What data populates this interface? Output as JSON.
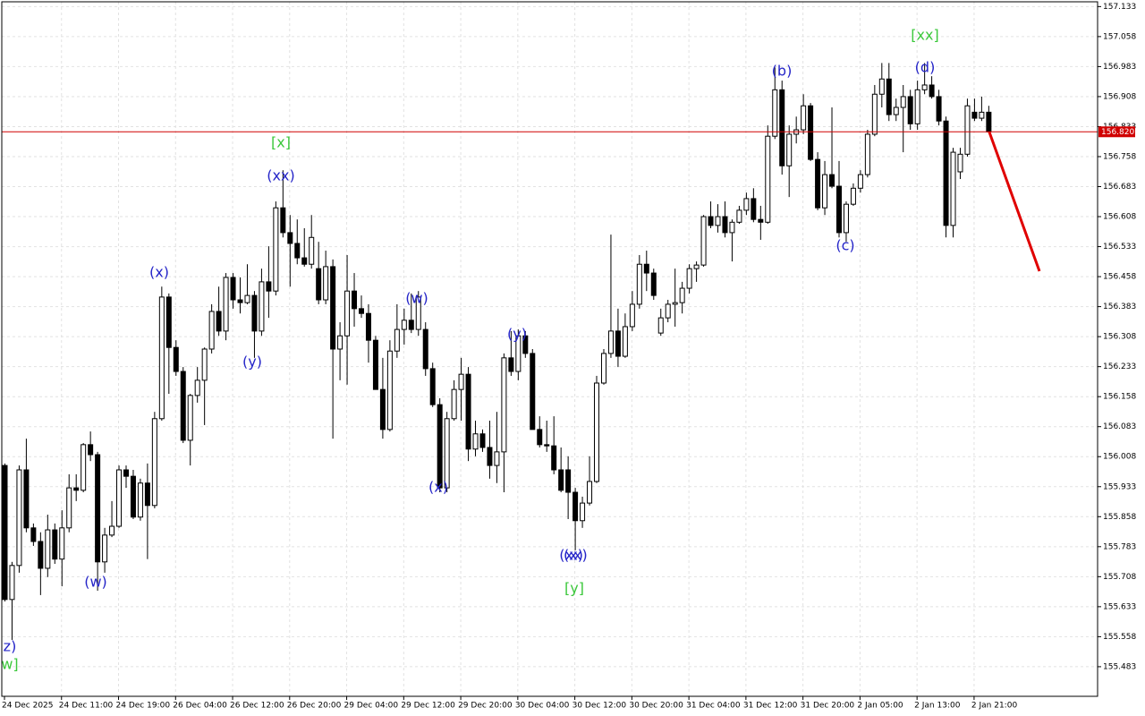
{
  "chart_data": {
    "type": "candlestick",
    "categories": [
      "24 Dec 2025",
      null,
      null,
      null,
      null,
      null,
      null,
      null,
      "24 Dec 11:00",
      null,
      null,
      null,
      null,
      null,
      null,
      null,
      "24 Dec 19:00",
      null,
      null,
      null,
      null,
      null,
      null,
      null,
      "26 Dec 04:00",
      null,
      null,
      null,
      null,
      null,
      null,
      null,
      "26 Dec 12:00",
      null,
      null,
      null,
      null,
      null,
      null,
      null,
      "26 Dec 20:00",
      null,
      null,
      null,
      null,
      null,
      null,
      null,
      "29 Dec 04:00",
      null,
      null,
      null,
      null,
      null,
      null,
      null,
      "29 Dec 12:00",
      null,
      null,
      null,
      null,
      null,
      null,
      null,
      "29 Dec 20:00",
      null,
      null,
      null,
      null,
      null,
      null,
      null,
      "30 Dec 04:00",
      null,
      null,
      null,
      null,
      null,
      null,
      null,
      "30 Dec 12:00",
      null,
      null,
      null,
      null,
      null,
      null,
      null,
      "30 Dec 20:00",
      null,
      null,
      null,
      null,
      null,
      null,
      null,
      "31 Dec 04:00",
      null,
      null,
      null,
      null,
      null,
      null,
      null,
      "31 Dec 12:00",
      null,
      null,
      null,
      null,
      null,
      null,
      null,
      "31 Dec 20:00",
      null,
      null,
      null,
      null,
      null,
      null,
      null,
      "2 Jan 05:00",
      null,
      null,
      null,
      null,
      null,
      null,
      null,
      "2 Jan 13:00",
      null,
      null,
      null,
      null,
      null,
      null,
      null,
      "2 Jan 21:00",
      null,
      null
    ],
    "open": [
      155.986,
      155.651,
      155.736,
      155.975,
      155.83,
      155.796,
      155.729,
      155.825,
      155.752,
      155.83,
      155.93,
      155.924,
      156.038,
      156.013,
      155.745,
      155.812,
      155.834,
      155.975,
      155.959,
      155.857,
      155.942,
      155.886,
      156.103,
      156.407,
      156.281,
      156.221,
      156.049,
      156.161,
      156.199,
      156.277,
      156.371,
      156.322,
      156.456,
      156.4,
      156.393,
      156.411,
      156.322,
      156.445,
      156.422,
      156.63,
      156.568,
      156.541,
      156.505,
      156.489,
      156.478,
      156.4,
      156.483,
      156.277,
      156.31,
      156.422,
      156.378,
      156.366,
      156.299,
      156.176,
      156.076,
      156.272,
      156.326,
      156.349,
      156.326,
      156.326,
      156.228,
      156.138,
      155.93,
      156.103,
      156.176,
      156.214,
      156.027,
      156.065,
      156.031,
      155.986,
      156.02,
      156.255,
      156.221,
      156.31,
      156.266,
      156.076,
      156.038,
      156.035,
      155.975,
      155.975,
      155.919,
      155.848,
      155.892,
      155.946,
      156.192,
      156.266,
      156.322,
      156.259,
      156.333,
      156.389,
      156.489,
      156.467,
      156.317,
      156.355,
      156.389,
      156.393,
      156.429,
      156.478,
      156.487,
      156.608,
      156.586,
      156.608,
      156.568,
      156.594,
      156.624,
      156.653,
      156.601,
      156.594,
      156.809,
      156.925,
      156.735,
      156.814,
      156.825,
      156.885,
      156.751,
      156.63,
      156.713,
      156.684,
      156.568,
      156.639,
      156.679,
      156.713,
      156.814,
      156.914,
      156.952,
      156.863,
      156.881,
      156.908,
      156.84,
      156.925,
      156.937,
      156.908,
      156.847,
      156.586,
      156.72,
      156.764,
      156.869,
      156.854,
      156.869
    ],
    "high": [
      155.991,
      155.745,
      155.986,
      156.053,
      155.841,
      155.819,
      155.863,
      155.841,
      155.874,
      155.964,
      155.964,
      156.042,
      156.071,
      156.02,
      155.83,
      155.897,
      155.986,
      155.986,
      155.975,
      155.953,
      155.991,
      156.12,
      156.433,
      156.416,
      156.299,
      156.232,
      156.165,
      156.232,
      156.281,
      156.389,
      156.433,
      156.467,
      156.467,
      156.456,
      156.489,
      156.422,
      156.478,
      156.534,
      156.646,
      156.724,
      156.612,
      156.601,
      156.579,
      156.612,
      156.545,
      156.523,
      156.501,
      156.344,
      156.512,
      156.467,
      156.411,
      156.389,
      156.31,
      156.255,
      156.299,
      156.389,
      156.378,
      156.416,
      156.422,
      156.344,
      156.243,
      156.154,
      156.12,
      156.199,
      156.255,
      156.232,
      156.098,
      156.076,
      156.098,
      156.12,
      156.266,
      156.322,
      156.326,
      156.322,
      156.277,
      156.109,
      156.098,
      156.109,
      156.031,
      156.009,
      155.93,
      155.908,
      156.009,
      156.21,
      156.277,
      156.563,
      156.378,
      156.366,
      156.422,
      156.512,
      156.523,
      156.478,
      156.378,
      156.4,
      156.478,
      156.445,
      156.489,
      156.496,
      156.612,
      156.646,
      156.639,
      156.646,
      156.601,
      156.635,
      156.668,
      156.679,
      156.635,
      156.836,
      156.981,
      156.948,
      156.836,
      156.858,
      156.914,
      156.892,
      156.769,
      156.747,
      156.881,
      156.747,
      156.646,
      156.691,
      156.724,
      156.825,
      156.937,
      156.992,
      156.992,
      156.903,
      156.937,
      156.925,
      156.948,
      156.992,
      156.959,
      156.925,
      156.858,
      156.78,
      156.78,
      156.903,
      156.903,
      156.908,
      156.885
    ],
    "low": [
      155.646,
      155.55,
      155.718,
      155.819,
      155.785,
      155.662,
      155.707,
      155.74,
      155.684,
      155.819,
      155.897,
      155.919,
      155.997,
      155.673,
      155.718,
      155.807,
      155.83,
      155.93,
      155.852,
      155.848,
      155.752,
      155.879,
      156.098,
      156.165,
      156.21,
      156.042,
      155.986,
      156.143,
      156.087,
      156.266,
      156.31,
      156.299,
      156.378,
      156.366,
      156.389,
      156.255,
      156.31,
      156.355,
      156.411,
      156.556,
      156.433,
      156.489,
      156.483,
      156.478,
      156.389,
      156.389,
      156.053,
      156.199,
      156.188,
      156.333,
      156.355,
      156.243,
      156.176,
      156.053,
      156.071,
      156.255,
      156.288,
      156.317,
      156.31,
      156.21,
      156.132,
      155.919,
      155.919,
      156.098,
      156.098,
      155.997,
      156.009,
      156.02,
      155.953,
      155.942,
      155.919,
      156.21,
      156.199,
      156.255,
      156.076,
      156.031,
      156.02,
      155.964,
      155.919,
      155.852,
      155.774,
      155.83,
      155.886,
      155.942,
      156.188,
      156.255,
      156.232,
      156.255,
      156.322,
      156.378,
      156.422,
      156.4,
      156.31,
      156.344,
      156.333,
      156.366,
      156.416,
      156.445,
      156.483,
      156.579,
      156.568,
      156.556,
      156.496,
      156.59,
      156.612,
      156.594,
      156.55,
      156.59,
      156.802,
      156.713,
      156.657,
      156.791,
      156.814,
      156.747,
      156.624,
      156.612,
      156.679,
      156.556,
      156.545,
      156.635,
      156.668,
      156.706,
      156.809,
      156.881,
      156.847,
      156.847,
      156.769,
      156.825,
      156.825,
      156.914,
      156.903,
      156.836,
      156.556,
      156.556,
      156.702,
      156.758,
      156.847,
      156.847,
      156.818
    ],
    "close": [
      155.651,
      155.736,
      155.975,
      155.83,
      155.796,
      155.729,
      155.825,
      155.752,
      155.83,
      155.93,
      155.924,
      156.038,
      156.013,
      155.745,
      155.812,
      155.834,
      155.975,
      155.959,
      155.857,
      155.942,
      155.886,
      156.103,
      156.407,
      156.281,
      156.221,
      156.049,
      156.161,
      156.199,
      156.277,
      156.371,
      156.322,
      156.456,
      156.4,
      156.393,
      156.411,
      156.322,
      156.445,
      156.422,
      156.63,
      156.568,
      156.541,
      156.505,
      156.489,
      156.556,
      156.4,
      156.483,
      156.277,
      156.31,
      156.422,
      156.378,
      156.366,
      156.299,
      156.176,
      156.076,
      156.272,
      156.326,
      156.349,
      156.326,
      156.407,
      156.228,
      156.138,
      155.93,
      156.103,
      156.176,
      156.214,
      156.027,
      156.065,
      156.031,
      155.986,
      156.02,
      156.255,
      156.221,
      156.31,
      156.266,
      156.076,
      156.038,
      156.035,
      155.975,
      155.924,
      155.919,
      155.848,
      155.892,
      155.946,
      156.192,
      156.266,
      156.322,
      156.259,
      156.333,
      156.389,
      156.489,
      156.467,
      156.411,
      156.355,
      156.389,
      156.393,
      156.429,
      156.478,
      156.487,
      156.608,
      156.586,
      156.608,
      156.568,
      156.594,
      156.624,
      156.653,
      156.601,
      156.594,
      156.809,
      156.925,
      156.735,
      156.814,
      156.825,
      156.885,
      156.751,
      156.63,
      156.713,
      156.684,
      156.568,
      156.639,
      156.679,
      156.713,
      156.814,
      156.914,
      156.952,
      156.863,
      156.881,
      156.908,
      156.84,
      156.925,
      156.937,
      156.908,
      156.847,
      156.586,
      156.769,
      156.764,
      156.885,
      156.854,
      156.869,
      156.82
    ],
    "ylim": [
      155.409,
      157.145
    ],
    "yticks": [
      157.133,
      157.058,
      156.983,
      156.908,
      156.833,
      156.758,
      156.683,
      156.608,
      156.533,
      156.458,
      156.383,
      156.308,
      156.233,
      156.158,
      156.083,
      156.008,
      155.933,
      155.858,
      155.783,
      155.708,
      155.633,
      155.558,
      155.483
    ],
    "grid": true,
    "up_color": "#ffffff",
    "down_color": "#000000",
    "last_price": {
      "value": 156.82,
      "label": "156.820"
    },
    "last_price_color": "#d00000",
    "annotations": [
      {
        "text": "z)",
        "color": "#2424c8"
      },
      {
        "text": "w]",
        "color": "#3cc83c"
      },
      {
        "text": "(w)",
        "color": "#2424c8"
      },
      {
        "text": "(x)",
        "color": "#2424c8"
      },
      {
        "text": "(y)",
        "color": "#2424c8"
      },
      {
        "text": "[x]",
        "color": "#3cc83c"
      },
      {
        "text": "(xx)",
        "color": "#2424c8"
      },
      {
        "text": "(w)",
        "color": "#2424c8"
      },
      {
        "text": "(x)",
        "color": "#2424c8"
      },
      {
        "text": "(y)",
        "color": "#2424c8"
      },
      {
        "text": "(xx)",
        "color": "#2424c8"
      },
      {
        "text": "(x)",
        "color": "#2424c8"
      },
      {
        "text": "[y]",
        "color": "#3cc83c"
      },
      {
        "text": "(b)",
        "color": "#2424c8"
      },
      {
        "text": "(c)",
        "color": "#2424c8"
      },
      {
        "text": "(d)",
        "color": "#2424c8"
      },
      {
        "text": "[xx]",
        "color": "#3cc83c"
      }
    ]
  }
}
